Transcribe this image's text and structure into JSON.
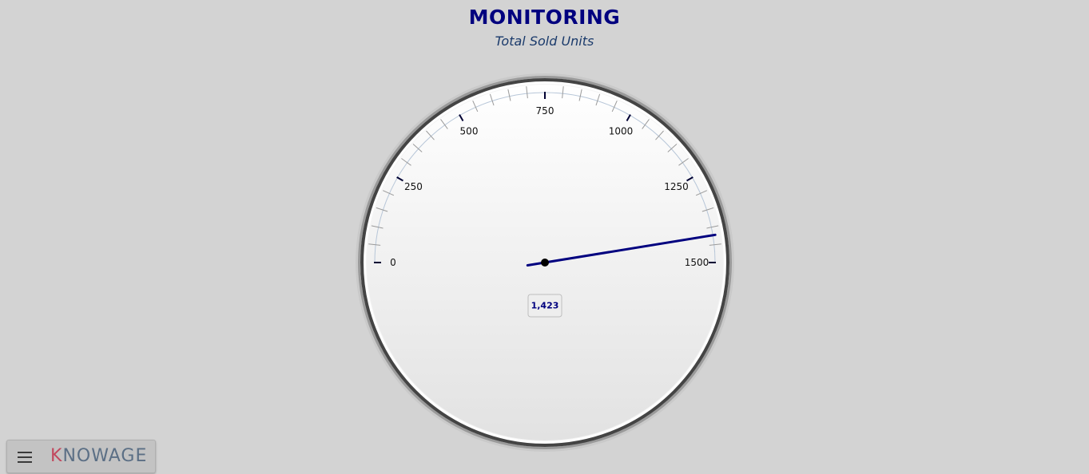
{
  "chart_data": {
    "type": "gauge",
    "title": "MONITORING",
    "subtitle": "Total Sold Units",
    "min": 0,
    "max": 1500,
    "major_ticks": [
      0,
      250,
      500,
      750,
      1000,
      1250,
      1500
    ],
    "value": 1423,
    "value_label": "1,423",
    "colors": {
      "title": "#00007f",
      "needle": "#00007f",
      "background": "#d3d3d3"
    }
  },
  "footer": {
    "menu_icon": "hamburger-menu-icon",
    "brand": "KNOWAGE",
    "brand_first": "K",
    "brand_rest": "NOWAGE"
  }
}
